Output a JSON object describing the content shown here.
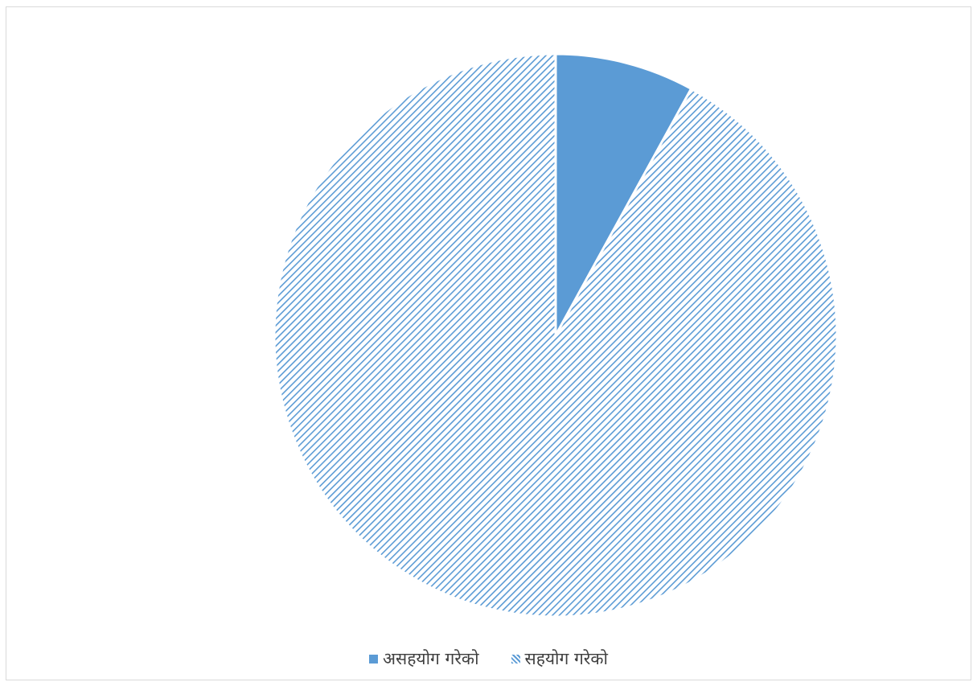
{
  "chart_data": {
    "type": "pie",
    "categories": [
      "असहयोग गरेको",
      "सहयोग गरेको"
    ],
    "values": [
      8,
      92
    ],
    "start_angle_deg": 0,
    "direction": "clockwise",
    "legend_position": "bottom",
    "slices": [
      {
        "name": "असहयोग गरेको",
        "value": 8,
        "fill": "solid",
        "color": "#5b9bd5"
      },
      {
        "name": "सहयोग गरेको",
        "value": 92,
        "fill": "diagonal-hatch",
        "color": "#5b9bd5",
        "background": "#ffffff"
      }
    ]
  },
  "legend": {
    "items": [
      {
        "label": "असहयोग गरेको"
      },
      {
        "label": "सहयोग गरेको"
      }
    ]
  }
}
